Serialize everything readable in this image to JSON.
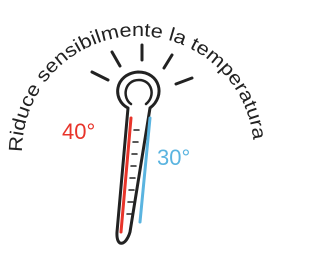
{
  "caption": "Riduce sensibilmente la temperatura",
  "labels": {
    "hot": "40°",
    "cool": "30°"
  }
}
